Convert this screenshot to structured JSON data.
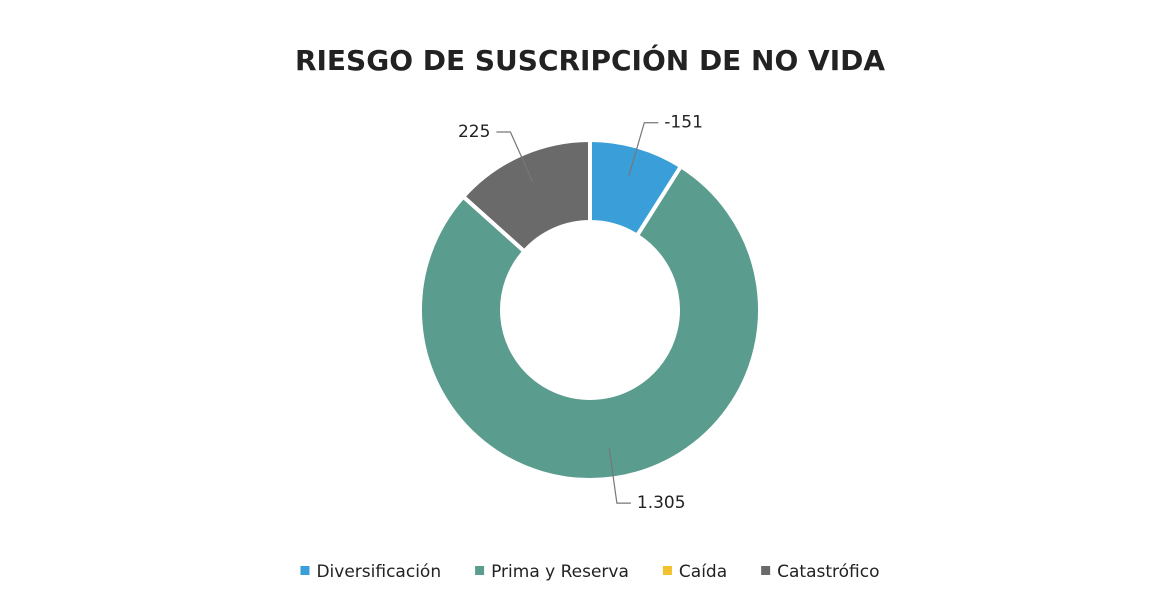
{
  "chart_data": {
    "type": "donut",
    "title": "RIESGO DE SUSCRIPCIÓN DE NO VIDA",
    "categories": [
      "Diversificación",
      "Prima y Reserva",
      "Caída",
      "Catastrófico"
    ],
    "values": [
      -151,
      1305,
      0,
      225
    ],
    "value_labels": [
      "-151",
      "1.305",
      null,
      "225"
    ],
    "colors": [
      "#3a9fd8",
      "#5a9c8e",
      "#f2c12e",
      "#6a6a6a"
    ],
    "legend": "bottom"
  }
}
